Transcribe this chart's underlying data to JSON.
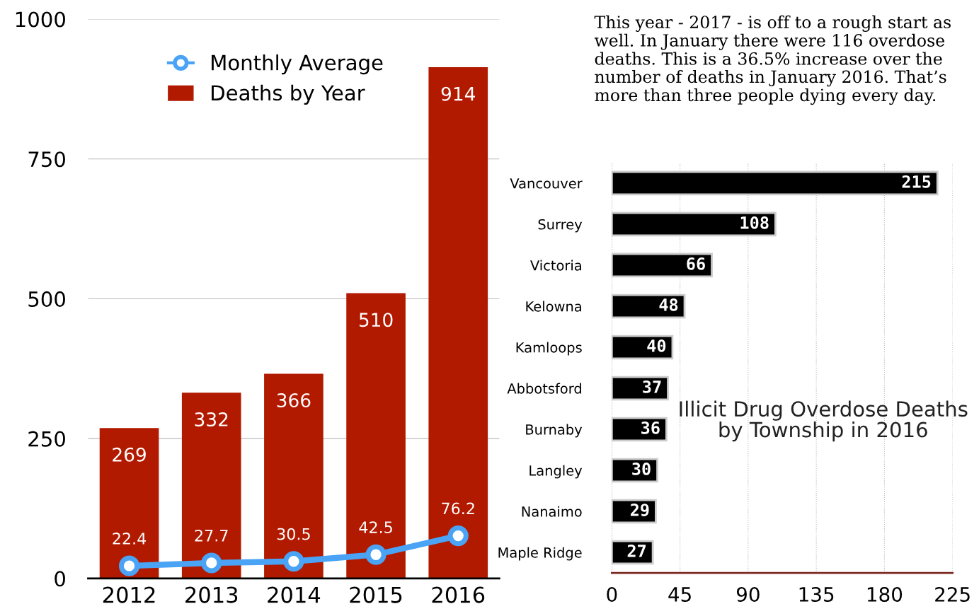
{
  "chart_data": [
    {
      "type": "bar",
      "categories": [
        "2012",
        "2013",
        "2014",
        "2015",
        "2016"
      ],
      "series": [
        {
          "name": "Monthly Average",
          "type": "line",
          "color": "#4aa3f5",
          "values": [
            22.4,
            27.7,
            30.5,
            42.5,
            76.2
          ]
        },
        {
          "name": "Deaths by Year",
          "type": "bar",
          "color": "#b21a00",
          "values": [
            269,
            332,
            366,
            510,
            914
          ]
        }
      ],
      "ylim": [
        0,
        1000
      ],
      "yticks": [
        0,
        250,
        500,
        750,
        1000
      ],
      "grid": "y",
      "legend": "top left",
      "marker": "circle",
      "data_labels": true
    },
    {
      "type": "bar",
      "orientation": "horizontal",
      "title": "Illicit Drug Overdose Deaths by Township in 2016",
      "annotations": [
        "This year - 2017 - is off to a rough start as well. In January there were 116 overdose deaths. This is a 36.5% increase over the number of deaths in January 2016. That’s more than three people dying every day."
      ],
      "categories": [
        "Vancouver",
        "Surrey",
        "Victoria",
        "Kelowna",
        "Kamloops",
        "Abbotsford",
        "Burnaby",
        "Langley",
        "Nanaimo",
        "Maple Ridge"
      ],
      "values": [
        215,
        108,
        66,
        48,
        40,
        37,
        36,
        30,
        29,
        27
      ],
      "color": "#000000",
      "xlim": [
        0,
        225
      ],
      "xticks": [
        0,
        45,
        90,
        135,
        180,
        225
      ],
      "grid": "x",
      "legend": false,
      "data_labels": true
    }
  ]
}
